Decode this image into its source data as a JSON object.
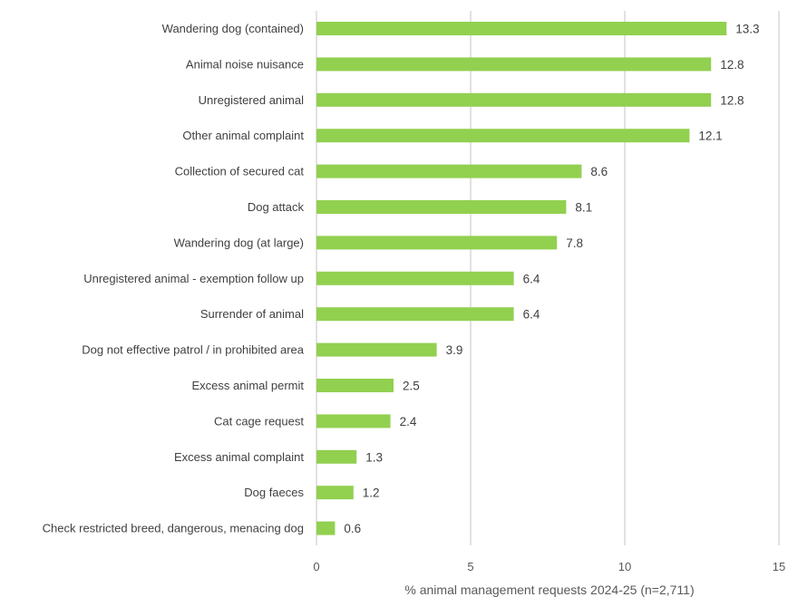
{
  "chart_data": {
    "type": "bar",
    "orientation": "horizontal",
    "categories": [
      "Wandering dog (contained)",
      "Animal noise nuisance",
      "Unregistered animal",
      "Other animal complaint",
      "Collection of secured cat",
      "Dog attack",
      "Wandering dog (at large)",
      "Unregistered animal - exemption follow up",
      "Surrender of animal",
      "Dog not effective patrol / in prohibited area",
      "Excess animal permit",
      "Cat cage request",
      "Excess animal complaint",
      "Dog faeces",
      "Check restricted breed, dangerous, menacing dog"
    ],
    "values": [
      13.3,
      12.8,
      12.8,
      12.1,
      8.6,
      8.1,
      7.8,
      6.4,
      6.4,
      3.9,
      2.5,
      2.4,
      1.3,
      1.2,
      0.6
    ],
    "value_labels": [
      "13.3",
      "12.8",
      "12.8",
      "12.1",
      "8.6",
      "8.1",
      "7.8",
      "6.4",
      "6.4",
      "3.9",
      "2.5",
      "2.4",
      "1.3",
      "1.2",
      "0.6"
    ],
    "xlabel": "% animal management requests 2024-25 (n=2,711)",
    "xlim": [
      0,
      15
    ],
    "xticks": [
      "0",
      "5",
      "10",
      "15"
    ],
    "grid": true,
    "legend": "none",
    "bar_color": "#92d050",
    "grid_color": "#d9d9d9"
  }
}
